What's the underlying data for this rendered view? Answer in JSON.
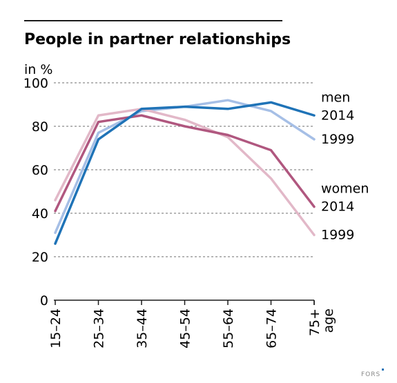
{
  "chart_data": {
    "type": "line",
    "title": "People in partner relationships",
    "ylabel": "in %",
    "xlabel": "age",
    "ylim": [
      0,
      100
    ],
    "yticks": [
      0,
      20,
      40,
      60,
      80,
      100
    ],
    "grid": true,
    "categories": [
      "15–24",
      "25–34",
      "35–44",
      "45–54",
      "55–64",
      "65–74",
      "75+"
    ],
    "series": [
      {
        "name": "men 2014",
        "label_top": "men",
        "label_bottom": "2014",
        "color": "#1f73b7",
        "values": [
          26,
          74,
          88,
          89,
          88,
          91,
          85
        ]
      },
      {
        "name": "men 1999",
        "label_top": "",
        "label_bottom": "1999",
        "color": "#a6bfe6",
        "values": [
          31,
          77,
          87,
          89,
          92,
          87,
          74
        ]
      },
      {
        "name": "women 2014",
        "label_top": "women",
        "label_bottom": "2014",
        "color": "#b0577f",
        "values": [
          41,
          82,
          85,
          80,
          76,
          69,
          43
        ]
      },
      {
        "name": "women 1999",
        "label_top": "",
        "label_bottom": "1999",
        "color": "#e2b8c8",
        "values": [
          46,
          85,
          88,
          83,
          75,
          56,
          30
        ]
      }
    ]
  },
  "brand": "FORS"
}
